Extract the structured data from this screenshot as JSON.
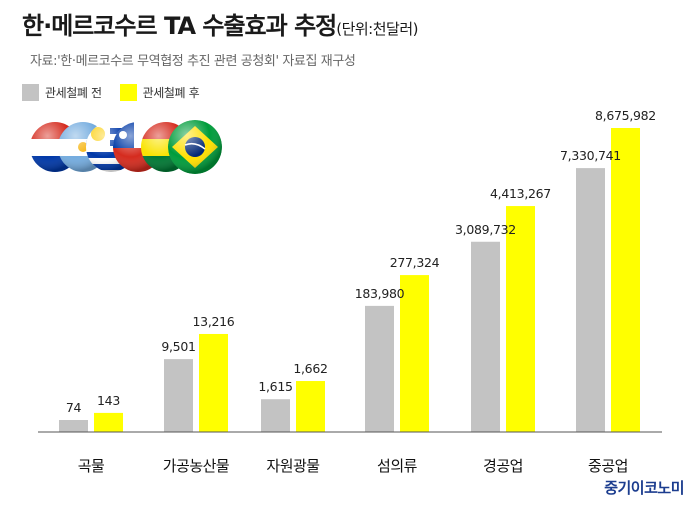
{
  "header": {
    "title": "한·메르코수르 TA 수출효과 추정",
    "unit": "(단위:천달러)"
  },
  "source": "자료:'한·메르코수르 무역협정 추진 관련 공청회' 자료집 재구성",
  "brand": "중기이코노미",
  "colors": {
    "before": "#c3c3c3",
    "after": "#ffff00",
    "axis": "#555555"
  },
  "flag_icons": [
    "paraguay-flag-icon",
    "argentina-flag-icon",
    "uruguay-flag-icon",
    "chile-flag-icon",
    "bolivia-flag-icon",
    "brazil-flag-icon"
  ],
  "chart_data": {
    "type": "bar",
    "title": "한·메르코수르 TA 수출효과 추정",
    "categories": [
      "곡물",
      "가공농산물",
      "자원광물",
      "섬의류",
      "경공업",
      "중공업"
    ],
    "series": [
      {
        "name": "관세철폐 전",
        "values": [
          74,
          9501,
          1615,
          183980,
          3089732,
          7330741
        ],
        "labels": [
          "74",
          "9,501",
          "1,615",
          "183,980",
          "3,089,732",
          "7,330,741"
        ]
      },
      {
        "name": "관세철폐 후",
        "values": [
          143,
          13216,
          1662,
          277324,
          4413267,
          8675982
        ],
        "labels": [
          "143",
          "13,216",
          "1,662",
          "277,324",
          "4,413,267",
          "8,675,982"
        ]
      }
    ],
    "display_scale_note": "",
    "legend": "top-left",
    "grid": false
  }
}
